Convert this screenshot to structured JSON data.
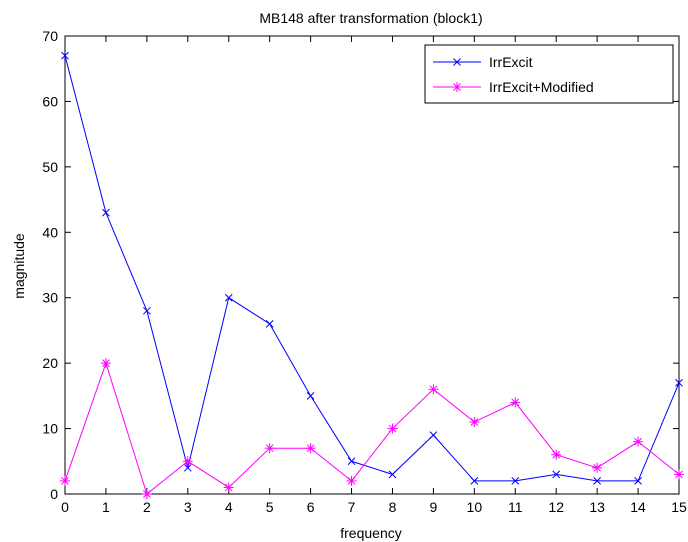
{
  "chart_data": {
    "type": "line",
    "title": "MB148 after transformation (block1)",
    "xlabel": "frequency",
    "ylabel": "magnitude",
    "xlim": [
      0,
      15
    ],
    "ylim": [
      0,
      70
    ],
    "xticks": [
      0,
      1,
      2,
      3,
      4,
      5,
      6,
      7,
      8,
      9,
      10,
      11,
      12,
      13,
      14,
      15
    ],
    "yticks": [
      0,
      10,
      20,
      30,
      40,
      50,
      60,
      70
    ],
    "x": [
      0,
      1,
      2,
      3,
      4,
      5,
      6,
      7,
      8,
      9,
      10,
      11,
      12,
      13,
      14,
      15
    ],
    "grid": false,
    "legend_position": "top-right",
    "series": [
      {
        "name": "IrrExcit",
        "color": "#0000ff",
        "marker": "x",
        "values": [
          67,
          43,
          28,
          4,
          30,
          26,
          15,
          5,
          3,
          9,
          2,
          2,
          3,
          2,
          2,
          17
        ]
      },
      {
        "name": "IrrExcit+Modified",
        "color": "#ff00ff",
        "marker": "star",
        "values": [
          2,
          20,
          0,
          5,
          1,
          7,
          7,
          2,
          10,
          16,
          11,
          14,
          6,
          4,
          8,
          3
        ]
      }
    ]
  }
}
